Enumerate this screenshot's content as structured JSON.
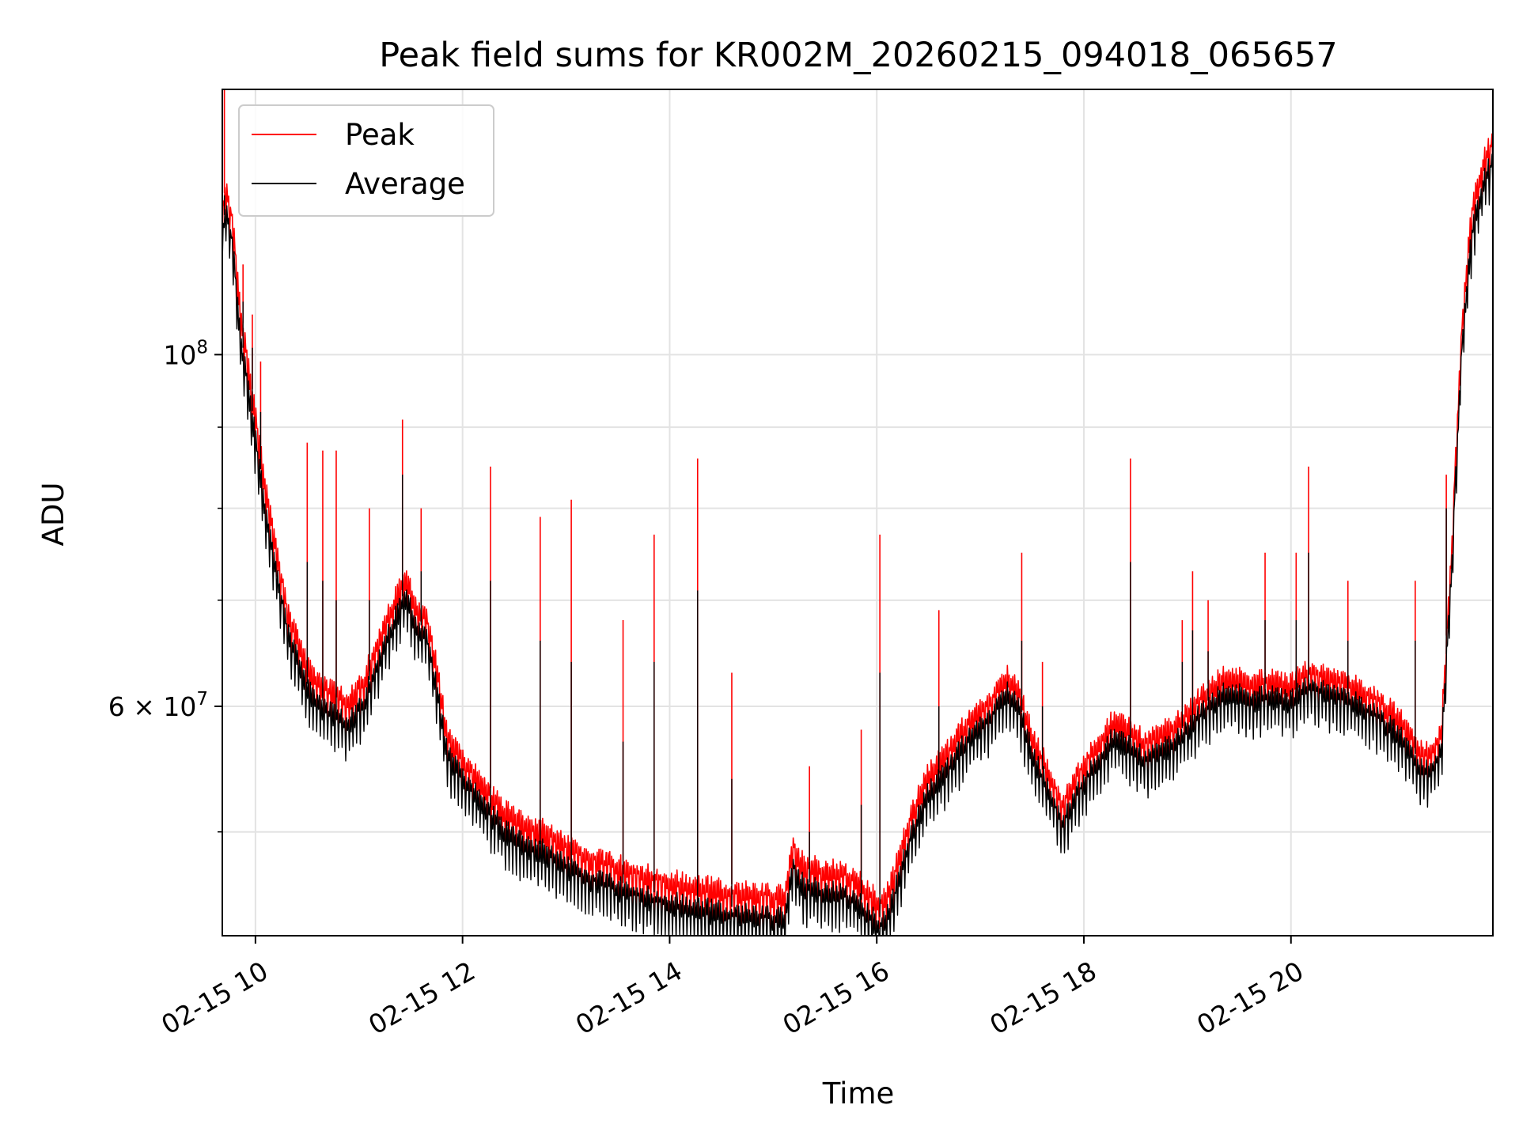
{
  "chart_data": {
    "type": "line",
    "title": "Peak field sums for KR002M_20260215_094018_065657",
    "xlabel": "Time",
    "ylabel": "ADU",
    "yscale": "log",
    "ylim": [
      43000000,
      147000000
    ],
    "xlim": [
      9.68,
      21.95
    ],
    "grid": true,
    "legend_position": "upper-left",
    "x_ticks": [
      {
        "value": 10,
        "label": "02-15 10"
      },
      {
        "value": 12,
        "label": "02-15 12"
      },
      {
        "value": 14,
        "label": "02-15 14"
      },
      {
        "value": 16,
        "label": "02-15 16"
      },
      {
        "value": 18,
        "label": "02-15 18"
      },
      {
        "value": 20,
        "label": "02-15 20"
      }
    ],
    "y_major_ticks": [
      {
        "value": 60000000,
        "label_base": "6 × 10",
        "label_exp": "7"
      },
      {
        "value": 100000000,
        "label_base": "10",
        "label_exp": "8"
      }
    ],
    "y_minor_ticks": [
      50000000,
      70000000,
      80000000,
      90000000
    ],
    "series": [
      {
        "name": "Peak",
        "color": "#ff0000",
        "baseline_offset": 1.03,
        "x": [
          9.68,
          9.72,
          9.78,
          9.85,
          9.95,
          10.1,
          10.3,
          10.5,
          10.7,
          10.9,
          11.05,
          11.2,
          11.35,
          11.45,
          11.55,
          11.65,
          11.75,
          11.85,
          12.0,
          12.2,
          12.4,
          12.6,
          12.8,
          13.0,
          13.3,
          13.6,
          13.9,
          14.2,
          14.5,
          14.8,
          15.0,
          15.1,
          15.2,
          15.3,
          15.5,
          15.7,
          15.85,
          15.95,
          16.05,
          16.15,
          16.3,
          16.5,
          16.7,
          16.9,
          17.1,
          17.25,
          17.35,
          17.5,
          17.7,
          17.8,
          17.9,
          18.1,
          18.3,
          18.45,
          18.6,
          18.8,
          19.0,
          19.2,
          19.4,
          19.6,
          19.8,
          20.0,
          20.2,
          20.4,
          20.6,
          20.8,
          21.0,
          21.2,
          21.3,
          21.45,
          21.55,
          21.65,
          21.75,
          21.85,
          21.95
        ],
        "y": [
          125000000,
          128000000,
          123000000,
          108000000,
          97000000,
          83000000,
          70000000,
          64000000,
          62000000,
          61000000,
          63000000,
          67000000,
          71000000,
          73000000,
          70000000,
          69000000,
          64000000,
          58000000,
          56000000,
          54000000,
          52000000,
          51000000,
          50500000,
          49500000,
          48500000,
          47800000,
          47200000,
          46700000,
          46400000,
          46200000,
          46100000,
          46000000,
          49500000,
          48000000,
          47800000,
          47500000,
          46800000,
          46000000,
          45600000,
          47000000,
          51000000,
          55000000,
          57000000,
          59500000,
          61000000,
          63500000,
          62500000,
          58000000,
          54500000,
          52500000,
          54500000,
          57000000,
          59500000,
          58500000,
          57500000,
          58500000,
          60000000,
          62000000,
          63500000,
          62500000,
          63000000,
          62500000,
          64000000,
          63000000,
          62500000,
          61500000,
          60000000,
          57500000,
          56500000,
          58000000,
          75000000,
          105000000,
          125000000,
          133000000,
          138000000
        ]
      },
      {
        "name": "Average",
        "color": "#000000",
        "baseline_offset": 1.0,
        "x": [
          9.68,
          9.72,
          9.78,
          9.85,
          9.95,
          10.1,
          10.3,
          10.5,
          10.7,
          10.9,
          11.05,
          11.2,
          11.35,
          11.45,
          11.55,
          11.65,
          11.75,
          11.85,
          12.0,
          12.2,
          12.4,
          12.6,
          12.8,
          13.0,
          13.3,
          13.6,
          13.9,
          14.2,
          14.5,
          14.8,
          15.0,
          15.1,
          15.2,
          15.3,
          15.5,
          15.7,
          15.85,
          15.95,
          16.05,
          16.15,
          16.3,
          16.5,
          16.7,
          16.9,
          17.1,
          17.25,
          17.35,
          17.5,
          17.7,
          17.8,
          17.9,
          18.1,
          18.3,
          18.45,
          18.6,
          18.8,
          19.0,
          19.2,
          19.4,
          19.6,
          19.8,
          20.0,
          20.2,
          20.4,
          20.6,
          20.8,
          21.0,
          21.2,
          21.3,
          21.45,
          21.55,
          21.65,
          21.75,
          21.85,
          21.95
        ],
        "y": [
          121000000,
          124000000,
          119000000,
          104000000,
          94000000,
          80000000,
          68000000,
          62000000,
          60000000,
          59000000,
          61000000,
          65000000,
          69000000,
          71000000,
          68000000,
          67000000,
          62000000,
          56500000,
          54500000,
          52500000,
          50500000,
          49500000,
          49000000,
          48000000,
          47000000,
          46300000,
          45700000,
          45200000,
          44900000,
          44700000,
          44600000,
          44500000,
          48000000,
          46500000,
          46300000,
          46000000,
          45300000,
          44500000,
          44100000,
          45500000,
          49500000,
          53500000,
          55500000,
          58000000,
          59500000,
          62000000,
          61000000,
          56500000,
          53000000,
          51000000,
          53000000,
          55500000,
          58000000,
          57000000,
          56000000,
          57000000,
          58500000,
          60500000,
          62000000,
          61000000,
          61500000,
          61000000,
          62500000,
          61500000,
          61000000,
          60000000,
          58500000,
          56000000,
          55000000,
          56500000,
          73000000,
          102000000,
          121000000,
          129000000,
          134000000
        ]
      }
    ],
    "spikes": [
      {
        "x": 9.7,
        "peak": 147000000,
        "avg": 126000000
      },
      {
        "x": 9.88,
        "peak": 114000000,
        "avg": 108000000
      },
      {
        "x": 9.97,
        "peak": 106000000,
        "avg": 101000000
      },
      {
        "x": 10.05,
        "peak": 99000000,
        "avg": 92000000
      },
      {
        "x": 10.5,
        "peak": 88000000,
        "avg": 74000000
      },
      {
        "x": 10.65,
        "peak": 87000000,
        "avg": 72000000
      },
      {
        "x": 10.78,
        "peak": 87000000,
        "avg": 70000000
      },
      {
        "x": 11.1,
        "peak": 80000000,
        "avg": 70000000
      },
      {
        "x": 11.42,
        "peak": 91000000,
        "avg": 84000000
      },
      {
        "x": 11.6,
        "peak": 80000000,
        "avg": 73000000
      },
      {
        "x": 12.27,
        "peak": 85000000,
        "avg": 72000000
      },
      {
        "x": 12.75,
        "peak": 79000000,
        "avg": 66000000
      },
      {
        "x": 13.05,
        "peak": 81000000,
        "avg": 64000000
      },
      {
        "x": 13.55,
        "peak": 68000000,
        "avg": 57000000
      },
      {
        "x": 13.85,
        "peak": 77000000,
        "avg": 64000000
      },
      {
        "x": 14.27,
        "peak": 86000000,
        "avg": 71000000
      },
      {
        "x": 14.6,
        "peak": 63000000,
        "avg": 54000000
      },
      {
        "x": 15.35,
        "peak": 55000000,
        "avg": 50000000
      },
      {
        "x": 15.85,
        "peak": 58000000,
        "avg": 52000000
      },
      {
        "x": 16.03,
        "peak": 77000000,
        "avg": 63000000
      },
      {
        "x": 16.6,
        "peak": 69000000,
        "avg": 60000000
      },
      {
        "x": 17.4,
        "peak": 75000000,
        "avg": 66000000
      },
      {
        "x": 17.6,
        "peak": 64000000,
        "avg": 60000000
      },
      {
        "x": 18.45,
        "peak": 86000000,
        "avg": 74000000
      },
      {
        "x": 18.95,
        "peak": 68000000,
        "avg": 64000000
      },
      {
        "x": 19.05,
        "peak": 73000000,
        "avg": 67000000
      },
      {
        "x": 19.2,
        "peak": 70000000,
        "avg": 65000000
      },
      {
        "x": 19.75,
        "peak": 75000000,
        "avg": 68000000
      },
      {
        "x": 20.05,
        "peak": 75000000,
        "avg": 68000000
      },
      {
        "x": 20.17,
        "peak": 85000000,
        "avg": 75000000
      },
      {
        "x": 20.55,
        "peak": 72000000,
        "avg": 66000000
      },
      {
        "x": 21.2,
        "peak": 72000000,
        "avg": 66000000
      },
      {
        "x": 21.5,
        "peak": 84000000,
        "avg": 80000000
      }
    ]
  }
}
